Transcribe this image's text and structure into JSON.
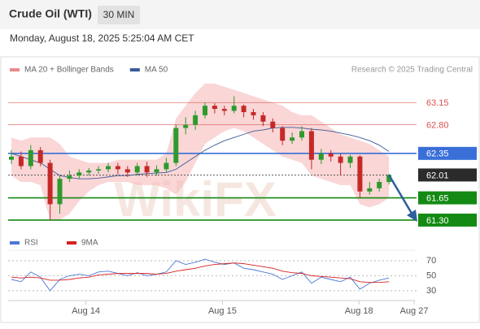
{
  "header": {
    "title": "Crude Oil (WTI)",
    "timeframe": "30 MIN",
    "timestamp": "Monday, August 18, 2025 5:25:04 AM CET"
  },
  "chart_data": {
    "type": "candlestick",
    "legend": [
      {
        "name": "MA 20 + Bollinger Bands",
        "color": "#e88b8b"
      },
      {
        "name": "MA 50",
        "color": "#3c5a99"
      }
    ],
    "credit": "Research © 2025 Trading Central",
    "watermark": "WikiFX",
    "ylim": [
      61.12,
      63.55
    ],
    "candles": [
      [
        62.25,
        62.4,
        62.18,
        62.3
      ],
      [
        62.3,
        62.38,
        62.1,
        62.15
      ],
      [
        62.15,
        62.48,
        62.1,
        62.4
      ],
      [
        62.4,
        62.45,
        62.15,
        62.2
      ],
      [
        62.2,
        62.25,
        61.3,
        61.55
      ],
      [
        61.55,
        62.0,
        61.4,
        61.95
      ],
      [
        61.95,
        62.08,
        61.9,
        62.0
      ],
      [
        62.0,
        62.1,
        61.95,
        62.05
      ],
      [
        62.05,
        62.12,
        62.0,
        62.08
      ],
      [
        62.08,
        62.15,
        62.03,
        62.1
      ],
      [
        62.1,
        62.2,
        62.05,
        62.15
      ],
      [
        62.15,
        62.2,
        62.02,
        62.1
      ],
      [
        62.1,
        62.15,
        61.98,
        62.05
      ],
      [
        62.05,
        62.2,
        62.0,
        62.15
      ],
      [
        62.15,
        62.22,
        61.98,
        62.05
      ],
      [
        62.05,
        62.16,
        62.0,
        62.1
      ],
      [
        62.1,
        62.28,
        62.05,
        62.2
      ],
      [
        62.2,
        62.8,
        62.15,
        62.75
      ],
      [
        62.75,
        62.92,
        62.65,
        62.8
      ],
      [
        62.8,
        63.02,
        62.72,
        62.95
      ],
      [
        62.95,
        63.15,
        62.9,
        63.1
      ],
      [
        63.1,
        63.14,
        62.98,
        63.05
      ],
      [
        63.05,
        63.1,
        62.95,
        63.02
      ],
      [
        63.02,
        63.25,
        62.98,
        63.1
      ],
      [
        63.1,
        63.12,
        62.92,
        63.0
      ],
      [
        63.0,
        63.05,
        62.88,
        62.95
      ],
      [
        62.95,
        63.0,
        62.78,
        62.85
      ],
      [
        62.85,
        62.9,
        62.68,
        62.75
      ],
      [
        62.75,
        62.78,
        62.48,
        62.55
      ],
      [
        62.55,
        62.68,
        62.5,
        62.6
      ],
      [
        62.6,
        62.78,
        62.55,
        62.7
      ],
      [
        62.7,
        62.75,
        62.1,
        62.25
      ],
      [
        62.25,
        62.42,
        62.18,
        62.35
      ],
      [
        62.35,
        62.4,
        62.22,
        62.3
      ],
      [
        62.3,
        62.35,
        62.0,
        62.2
      ],
      [
        62.2,
        62.33,
        62.12,
        62.3
      ],
      [
        62.3,
        62.32,
        61.65,
        61.75
      ],
      [
        61.75,
        61.9,
        61.7,
        61.8
      ],
      [
        61.8,
        61.95,
        61.75,
        61.9
      ],
      [
        61.9,
        62.03,
        61.86,
        62.01
      ]
    ],
    "ma50": [
      62.35,
      62.3,
      62.25,
      62.2,
      62.1,
      62.0,
      61.97,
      61.95,
      61.95,
      61.96,
      61.98,
      62.0,
      62.0,
      62.02,
      62.03,
      62.04,
      62.05,
      62.1,
      62.2,
      62.3,
      62.4,
      62.48,
      62.55,
      62.6,
      62.65,
      62.7,
      62.72,
      62.75,
      62.76,
      62.76,
      62.75,
      62.73,
      62.72,
      62.7,
      62.67,
      62.64,
      62.6,
      62.55,
      62.48,
      62.38
    ],
    "bb_upper": [
      62.6,
      62.55,
      62.6,
      62.6,
      62.6,
      62.5,
      62.3,
      62.25,
      62.2,
      62.2,
      62.2,
      62.25,
      62.25,
      62.25,
      62.25,
      62.25,
      62.35,
      62.9,
      63.1,
      63.3,
      63.45,
      63.45,
      63.4,
      63.35,
      63.3,
      63.25,
      63.2,
      63.15,
      63.1,
      63.0,
      62.95,
      62.95,
      62.85,
      62.75,
      62.65,
      62.6,
      62.55,
      62.5,
      62.4,
      62.3
    ],
    "bb_lower": [
      62.0,
      61.9,
      61.9,
      61.85,
      61.3,
      61.3,
      61.4,
      61.6,
      61.75,
      61.85,
      61.9,
      61.9,
      61.9,
      61.85,
      61.85,
      61.85,
      61.8,
      61.7,
      61.9,
      62.2,
      62.5,
      62.6,
      62.7,
      62.75,
      62.7,
      62.6,
      62.5,
      62.4,
      62.3,
      62.25,
      62.2,
      62.0,
      61.95,
      61.9,
      61.85,
      61.85,
      61.55,
      61.5,
      61.55,
      61.65
    ],
    "levels": [
      {
        "value": 63.15,
        "label": "63.15",
        "color": "#d9534f",
        "style": "plain"
      },
      {
        "value": 62.8,
        "label": "62.80",
        "color": "#d9534f",
        "style": "plain"
      },
      {
        "value": 62.35,
        "label": "62.35",
        "color": "#3a6fd8",
        "style": "box"
      },
      {
        "value": 62.01,
        "label": "62.01",
        "color": "#2b2b2b",
        "style": "box"
      },
      {
        "value": 61.65,
        "label": "61.65",
        "color": "#138a13",
        "style": "box"
      },
      {
        "value": 61.3,
        "label": "61.30",
        "color": "#138a13",
        "style": "box"
      }
    ],
    "x_labels": [
      {
        "index": 7.7,
        "label": "Aug 14"
      },
      {
        "index": 21.8,
        "label": "Aug 15"
      },
      {
        "index": 35.9,
        "label": "Aug 18"
      },
      {
        "index": 41.6,
        "label": "Aug 27"
      }
    ],
    "rsi": {
      "legend": [
        {
          "name": "RSI",
          "color": "#4a78d4"
        },
        {
          "name": "9MA",
          "color": "#d62020"
        }
      ],
      "ylim": [
        19,
        84
      ],
      "yticks": [
        70,
        50,
        30
      ],
      "rsi_values": [
        45,
        42,
        55,
        48,
        30,
        45,
        50,
        52,
        50,
        55,
        56,
        53,
        50,
        54,
        50,
        52,
        55,
        70,
        65,
        68,
        72,
        68,
        65,
        67,
        60,
        58,
        55,
        52,
        45,
        50,
        55,
        40,
        48,
        45,
        42,
        48,
        32,
        40,
        44,
        47
      ],
      "ma_values": [
        48,
        47,
        48,
        47,
        44,
        44,
        45,
        47,
        48,
        51,
        52,
        53,
        53,
        53,
        53,
        52,
        53,
        56,
        58,
        60,
        63,
        65,
        66,
        67,
        66,
        64,
        62,
        60,
        56,
        54,
        53,
        50,
        49,
        48,
        47,
        46,
        42,
        41,
        41,
        42
      ]
    }
  }
}
